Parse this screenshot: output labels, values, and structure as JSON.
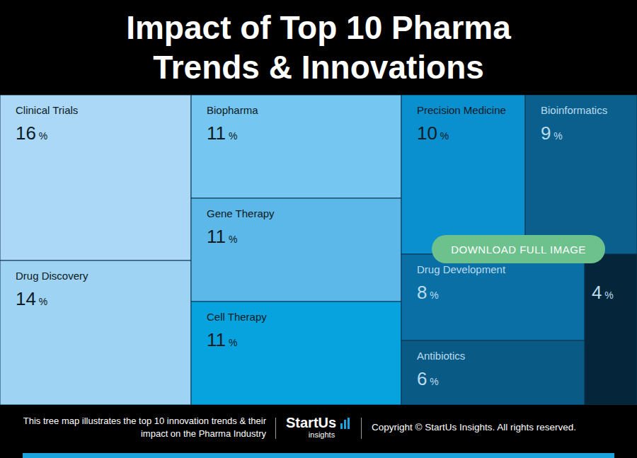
{
  "chart_data": {
    "type": "treemap",
    "title": "Impact of Top 10 Pharma Trends & Innovations",
    "categories": [
      "Clinical Trials",
      "Drug Discovery",
      "Biopharma",
      "Gene Therapy",
      "Cell Therapy",
      "Precision Medicine",
      "Bioinformatics",
      "Drug Development",
      "Antibiotics",
      null
    ],
    "values": [
      16,
      14,
      11,
      11,
      11,
      10,
      9,
      8,
      6,
      4
    ],
    "value_labels": [
      "16 %",
      "14 %",
      "11 %",
      "11 %",
      "11 %",
      "10 %",
      "9 %",
      "8 %",
      "6 %",
      "4 %"
    ],
    "colors": [
      "#aad8f6",
      "#9fd3f3",
      "#75c6f0",
      "#5cb8e9",
      "#06a3df",
      "#0a8fcf",
      "#0b5f8c",
      "#0a6fa5",
      "#0a5a86",
      "#05263a"
    ],
    "data_labels": true
  },
  "button": "DOWNLOAD FULL IMAGE",
  "caption": "This tree map illustrates the top 10 innovation trends & their impact on the Pharma Industry",
  "logo": {
    "name": "StartUs",
    "tagline": "insights"
  },
  "copyright": "Copyright © StartUs Insights. All rights reserved."
}
